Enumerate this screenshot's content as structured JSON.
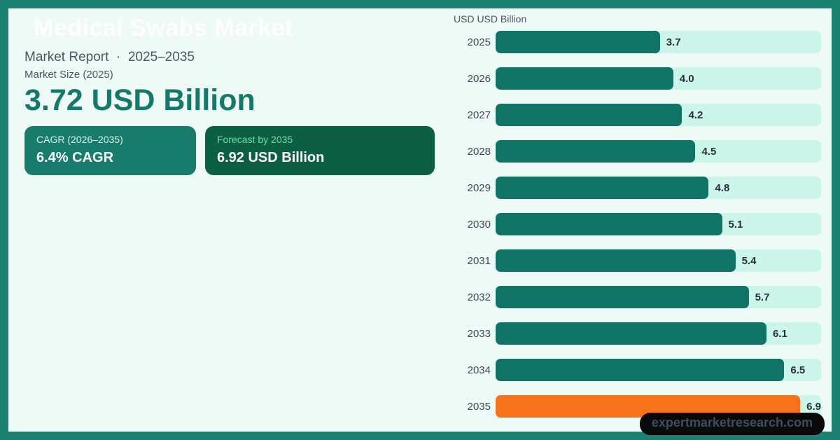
{
  "header": {
    "title": "Medical Swabs Market",
    "subtitle": "Market Report  ·  2025–2035",
    "market_size_label": "Market Size (2025)",
    "market_size_value": "3.72 USD Billion"
  },
  "badges": [
    {
      "label": "CAGR (2026–2035)",
      "value": "6.4% CAGR",
      "bg": "#177c6c",
      "label_color": "#ddf1e9"
    },
    {
      "label": "Forecast by 2035",
      "value": "6.92 USD Billion",
      "bg": "#0c5f42",
      "label_color": "#6adfa4"
    }
  ],
  "watermark": {
    "text": "expertmarketresearch.com",
    "bg": "#0a0a0a",
    "text_color": "#3d4f5d"
  },
  "colors": {
    "frame_border": "#1b8171",
    "background": "#edfaf5",
    "accent_teal": "#15796a"
  },
  "chart_data": {
    "type": "bar",
    "orientation": "horizontal",
    "title": "USD USD Billion",
    "xlabel": "",
    "ylabel": "",
    "categories": [
      "2025",
      "2026",
      "2027",
      "2028",
      "2029",
      "2030",
      "2031",
      "2032",
      "2033",
      "2034",
      "2035"
    ],
    "values": [
      3.7,
      4.0,
      4.2,
      4.5,
      4.8,
      5.1,
      5.4,
      5.7,
      6.1,
      6.5,
      6.9
    ],
    "value_labels": [
      "3.7",
      "4.0",
      "4.2",
      "4.5",
      "4.8",
      "5.1",
      "5.4",
      "5.7",
      "6.1",
      "6.5",
      "6.9"
    ],
    "xlim": [
      0,
      7.33
    ],
    "grid": false,
    "legend": false,
    "bar_color": "#0f7366",
    "highlight_color": "#f7741c",
    "highlight_index": 10,
    "track_color": "#cdf6ea",
    "label_color": "#262f3a"
  }
}
